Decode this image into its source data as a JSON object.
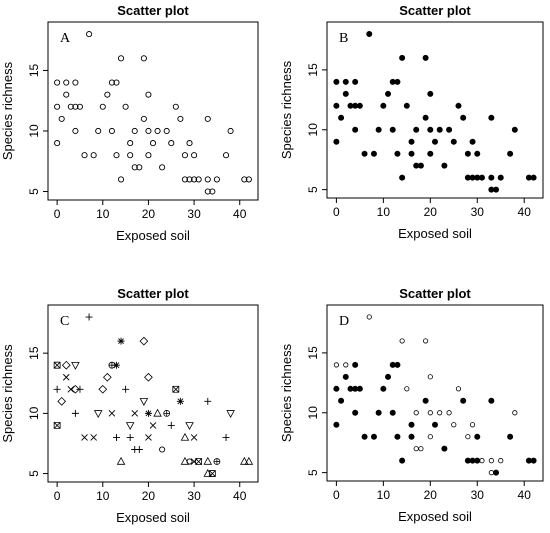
{
  "chart_data": [
    {
      "type": "scatter",
      "panel": "A",
      "title": "Scatter plot",
      "xlabel": "Exposed soil",
      "ylabel": "Species richness",
      "xlim": [
        -2,
        44
      ],
      "ylim": [
        4.3,
        19
      ],
      "xticks": [
        0,
        10,
        20,
        30,
        40
      ],
      "yticks": [
        5,
        10,
        15
      ],
      "marker": "open-circle",
      "points": [
        [
          0,
          14
        ],
        [
          0,
          12
        ],
        [
          0,
          9
        ],
        [
          1,
          11
        ],
        [
          2,
          14
        ],
        [
          2,
          13
        ],
        [
          3,
          12
        ],
        [
          4,
          14
        ],
        [
          4,
          12
        ],
        [
          4,
          10
        ],
        [
          5,
          12
        ],
        [
          6,
          8
        ],
        [
          7,
          18
        ],
        [
          8,
          8
        ],
        [
          9,
          10
        ],
        [
          10,
          12
        ],
        [
          11,
          13
        ],
        [
          12,
          14
        ],
        [
          12,
          10
        ],
        [
          13,
          14
        ],
        [
          13,
          8
        ],
        [
          14,
          16
        ],
        [
          14,
          6
        ],
        [
          15,
          12
        ],
        [
          16,
          9
        ],
        [
          16,
          8
        ],
        [
          17,
          7
        ],
        [
          17,
          10
        ],
        [
          18,
          7
        ],
        [
          19,
          11
        ],
        [
          19,
          16
        ],
        [
          20,
          13
        ],
        [
          20,
          10
        ],
        [
          20,
          8
        ],
        [
          21,
          9
        ],
        [
          22,
          10
        ],
        [
          23,
          7
        ],
        [
          24,
          10
        ],
        [
          25,
          9
        ],
        [
          26,
          12
        ],
        [
          27,
          11
        ],
        [
          28,
          8
        ],
        [
          28,
          6
        ],
        [
          29,
          6
        ],
        [
          29,
          9
        ],
        [
          30,
          8
        ],
        [
          30,
          6
        ],
        [
          31,
          6
        ],
        [
          33,
          11
        ],
        [
          33,
          6
        ],
        [
          33,
          5
        ],
        [
          34,
          5
        ],
        [
          35,
          6
        ],
        [
          37,
          8
        ],
        [
          38,
          10
        ],
        [
          41,
          6
        ],
        [
          42,
          6
        ]
      ]
    },
    {
      "type": "scatter",
      "panel": "B",
      "title": "Scatter plot",
      "xlabel": "Exposed soil",
      "ylabel": "Species richness",
      "xlim": [
        -2,
        44
      ],
      "ylim": [
        4.3,
        19
      ],
      "xticks": [
        0,
        10,
        20,
        30,
        40
      ],
      "yticks": [
        5,
        10,
        15
      ],
      "marker": "filled-circle",
      "points": [
        [
          0,
          14
        ],
        [
          0,
          12
        ],
        [
          0,
          9
        ],
        [
          1,
          11
        ],
        [
          2,
          14
        ],
        [
          2,
          13
        ],
        [
          3,
          12
        ],
        [
          4,
          14
        ],
        [
          4,
          12
        ],
        [
          4,
          10
        ],
        [
          5,
          12
        ],
        [
          6,
          8
        ],
        [
          7,
          18
        ],
        [
          8,
          8
        ],
        [
          9,
          10
        ],
        [
          10,
          12
        ],
        [
          11,
          13
        ],
        [
          12,
          14
        ],
        [
          12,
          10
        ],
        [
          13,
          14
        ],
        [
          13,
          8
        ],
        [
          14,
          16
        ],
        [
          14,
          6
        ],
        [
          15,
          12
        ],
        [
          16,
          9
        ],
        [
          16,
          8
        ],
        [
          17,
          7
        ],
        [
          17,
          10
        ],
        [
          18,
          7
        ],
        [
          19,
          11
        ],
        [
          19,
          16
        ],
        [
          20,
          13
        ],
        [
          20,
          10
        ],
        [
          20,
          8
        ],
        [
          21,
          9
        ],
        [
          22,
          10
        ],
        [
          23,
          7
        ],
        [
          24,
          10
        ],
        [
          25,
          9
        ],
        [
          26,
          12
        ],
        [
          27,
          11
        ],
        [
          28,
          8
        ],
        [
          28,
          6
        ],
        [
          29,
          6
        ],
        [
          29,
          9
        ],
        [
          30,
          8
        ],
        [
          30,
          6
        ],
        [
          31,
          6
        ],
        [
          33,
          11
        ],
        [
          33,
          6
        ],
        [
          33,
          5
        ],
        [
          34,
          5
        ],
        [
          35,
          6
        ],
        [
          37,
          8
        ],
        [
          38,
          10
        ],
        [
          41,
          6
        ],
        [
          42,
          6
        ]
      ]
    },
    {
      "type": "scatter",
      "panel": "C",
      "title": "Scatter plot",
      "xlabel": "Exposed soil",
      "ylabel": "Species richness",
      "xlim": [
        -2,
        44
      ],
      "ylim": [
        4.3,
        19
      ],
      "xticks": [
        0,
        10,
        20,
        30,
        40
      ],
      "yticks": [
        5,
        10,
        15
      ],
      "marker": "mixed",
      "points": [
        [
          0,
          14,
          "sqx"
        ],
        [
          0,
          12,
          "plus"
        ],
        [
          0,
          9,
          "sqx"
        ],
        [
          1,
          11,
          "diamond"
        ],
        [
          2,
          14,
          "diamond"
        ],
        [
          2,
          13,
          "x"
        ],
        [
          3,
          12,
          "x"
        ],
        [
          4,
          14,
          "tri-down"
        ],
        [
          4,
          12,
          "diamond"
        ],
        [
          4,
          10,
          "plus"
        ],
        [
          5,
          12,
          "plus"
        ],
        [
          6,
          8,
          "x"
        ],
        [
          7,
          18,
          "plus"
        ],
        [
          8,
          8,
          "x"
        ],
        [
          9,
          10,
          "tri-down"
        ],
        [
          10,
          12,
          "diamond"
        ],
        [
          11,
          13,
          "diamond"
        ],
        [
          12,
          14,
          "circle-plus"
        ],
        [
          12,
          10,
          "x"
        ],
        [
          13,
          14,
          "asterisk"
        ],
        [
          13,
          8,
          "plus"
        ],
        [
          14,
          16,
          "asterisk"
        ],
        [
          14,
          6,
          "triangle"
        ],
        [
          15,
          12,
          "plus"
        ],
        [
          16,
          9,
          "tri-down"
        ],
        [
          16,
          8,
          "plus"
        ],
        [
          17,
          7,
          "plus"
        ],
        [
          17,
          10,
          "x"
        ],
        [
          18,
          7,
          "plus"
        ],
        [
          19,
          11,
          "tri-down"
        ],
        [
          19,
          16,
          "diamond"
        ],
        [
          20,
          13,
          "diamond"
        ],
        [
          20,
          10,
          "asterisk"
        ],
        [
          20,
          8,
          "x"
        ],
        [
          21,
          9,
          "x"
        ],
        [
          22,
          10,
          "triangle"
        ],
        [
          23,
          7,
          "circle"
        ],
        [
          24,
          10,
          "circle-plus"
        ],
        [
          25,
          9,
          "plus"
        ],
        [
          26,
          12,
          "sqx"
        ],
        [
          27,
          11,
          "asterisk"
        ],
        [
          28,
          8,
          "triangle"
        ],
        [
          28,
          6,
          "triangle"
        ],
        [
          29,
          6,
          "circle"
        ],
        [
          29,
          9,
          "tri-down"
        ],
        [
          30,
          8,
          "x"
        ],
        [
          30,
          6,
          "x"
        ],
        [
          31,
          6,
          "sqx"
        ],
        [
          33,
          11,
          "plus"
        ],
        [
          33,
          6,
          "triangle"
        ],
        [
          33,
          5,
          "triangle"
        ],
        [
          34,
          5,
          "sqx"
        ],
        [
          35,
          6,
          "circle-plus"
        ],
        [
          37,
          8,
          "plus"
        ],
        [
          38,
          10,
          "tri-down"
        ],
        [
          41,
          6,
          "triangle"
        ],
        [
          42,
          6,
          "triangle"
        ]
      ]
    },
    {
      "type": "scatter",
      "panel": "D",
      "title": "Scatter plot",
      "xlabel": "Exposed soil",
      "ylabel": "Species richness",
      "xlim": [
        -2,
        44
      ],
      "ylim": [
        4.3,
        19
      ],
      "xticks": [
        0,
        10,
        20,
        30,
        40
      ],
      "yticks": [
        5,
        10,
        15
      ],
      "marker": "mixed",
      "points": [
        [
          0,
          14,
          "open"
        ],
        [
          0,
          12,
          "filled"
        ],
        [
          0,
          9,
          "filled"
        ],
        [
          1,
          11,
          "filled"
        ],
        [
          2,
          14,
          "open"
        ],
        [
          2,
          13,
          "filled"
        ],
        [
          3,
          12,
          "filled"
        ],
        [
          4,
          14,
          "filled"
        ],
        [
          4,
          12,
          "filled"
        ],
        [
          4,
          10,
          "filled"
        ],
        [
          5,
          12,
          "filled"
        ],
        [
          6,
          8,
          "filled"
        ],
        [
          7,
          18,
          "open"
        ],
        [
          8,
          8,
          "filled"
        ],
        [
          9,
          10,
          "filled"
        ],
        [
          10,
          12,
          "filled"
        ],
        [
          11,
          13,
          "filled"
        ],
        [
          12,
          14,
          "filled"
        ],
        [
          12,
          10,
          "filled"
        ],
        [
          13,
          14,
          "filled"
        ],
        [
          13,
          8,
          "filled"
        ],
        [
          14,
          16,
          "open"
        ],
        [
          14,
          6,
          "filled"
        ],
        [
          15,
          12,
          "open"
        ],
        [
          16,
          9,
          "filled"
        ],
        [
          16,
          8,
          "filled"
        ],
        [
          17,
          7,
          "open"
        ],
        [
          17,
          10,
          "open"
        ],
        [
          18,
          7,
          "open"
        ],
        [
          19,
          11,
          "filled"
        ],
        [
          19,
          16,
          "open"
        ],
        [
          20,
          13,
          "open"
        ],
        [
          20,
          10,
          "open"
        ],
        [
          20,
          8,
          "open"
        ],
        [
          21,
          9,
          "filled"
        ],
        [
          22,
          10,
          "open"
        ],
        [
          23,
          7,
          "filled"
        ],
        [
          24,
          10,
          "open"
        ],
        [
          25,
          9,
          "open"
        ],
        [
          26,
          12,
          "open"
        ],
        [
          27,
          11,
          "filled"
        ],
        [
          28,
          8,
          "open"
        ],
        [
          28,
          6,
          "filled"
        ],
        [
          29,
          6,
          "filled"
        ],
        [
          29,
          9,
          "open"
        ],
        [
          30,
          8,
          "filled"
        ],
        [
          30,
          6,
          "filled"
        ],
        [
          31,
          6,
          "open"
        ],
        [
          33,
          11,
          "filled"
        ],
        [
          33,
          6,
          "open"
        ],
        [
          33,
          5,
          "open"
        ],
        [
          34,
          5,
          "filled"
        ],
        [
          35,
          6,
          "open"
        ],
        [
          37,
          8,
          "filled"
        ],
        [
          38,
          10,
          "open"
        ],
        [
          41,
          6,
          "filled"
        ],
        [
          42,
          6,
          "filled"
        ]
      ]
    }
  ]
}
